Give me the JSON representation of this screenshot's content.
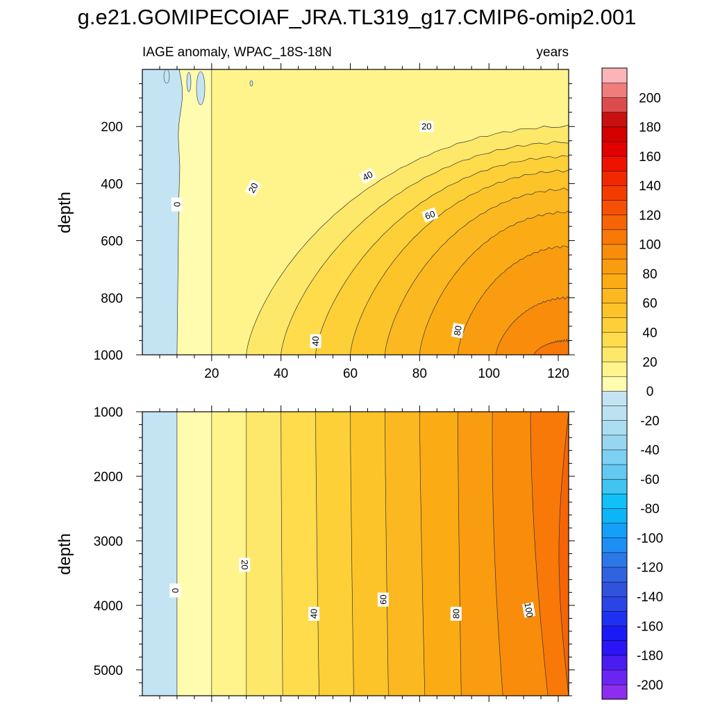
{
  "title": "g.e21.GOMIPECOIAF_JRA.TL319_g17.CMIP6-omip2.001",
  "chart_data": [
    {
      "panel": "upper",
      "type": "heatmap",
      "subtitle_left": "IAGE anomaly, WPAC_18S-18N",
      "subtitle_right": "years",
      "xlabel": "",
      "ylabel": "depth",
      "xlim": [
        0,
        123
      ],
      "ylim": [
        0,
        1000
      ],
      "y_reversed": true,
      "x_ticks": [
        "20",
        "40",
        "60",
        "80",
        "100",
        "120"
      ],
      "y_ticks": [
        "200",
        "400",
        "600",
        "800",
        "1000"
      ],
      "contour_interval": 10,
      "contour_labels": [
        "0",
        "20",
        "20",
        "40",
        "40",
        "60",
        "80"
      ],
      "isolines": [
        {
          "level": 0,
          "bottom_x": 10,
          "top_x": 11,
          "thermocline_depth": null
        },
        {
          "level": 10,
          "bottom_x": 20,
          "top_x": 20,
          "thermocline_depth": null
        },
        {
          "level": 20,
          "bottom_x": 30,
          "top_x": 123,
          "thermocline_depth": 200
        },
        {
          "level": 30,
          "bottom_x": 40,
          "top_x": 123,
          "thermocline_depth": 255
        },
        {
          "level": 40,
          "bottom_x": 50,
          "top_x": 123,
          "thermocline_depth": 305
        },
        {
          "level": 50,
          "bottom_x": 60,
          "top_x": 123,
          "thermocline_depth": 355
        },
        {
          "level": 60,
          "bottom_x": 70,
          "top_x": 123,
          "thermocline_depth": 420
        },
        {
          "level": 70,
          "bottom_x": 80,
          "top_x": 123,
          "thermocline_depth": 500
        },
        {
          "level": 80,
          "bottom_x": 91,
          "top_x": 123,
          "thermocline_depth": 620
        },
        {
          "level": 90,
          "bottom_x": 102,
          "top_x": 123,
          "thermocline_depth": 800
        },
        {
          "level": 100,
          "bottom_x": 113,
          "top_x": 123,
          "thermocline_depth": 950
        }
      ]
    },
    {
      "panel": "lower",
      "type": "heatmap",
      "xlabel": "",
      "ylabel": "depth",
      "xlim": [
        0,
        123
      ],
      "ylim": [
        1000,
        5400
      ],
      "y_reversed": true,
      "y_ticks": [
        "1000",
        "2000",
        "3000",
        "4000",
        "5000"
      ],
      "contour_interval": 10,
      "contour_labels": [
        "0",
        "20",
        "40",
        "60",
        "80",
        "100"
      ],
      "isolines": [
        {
          "level": 0,
          "top_x": 10,
          "bottom_x": 10
        },
        {
          "level": 10,
          "top_x": 20,
          "bottom_x": 20
        },
        {
          "level": 20,
          "top_x": 30,
          "bottom_x": 30
        },
        {
          "level": 30,
          "top_x": 40,
          "bottom_x": 40.5
        },
        {
          "level": 40,
          "top_x": 50,
          "bottom_x": 51
        },
        {
          "level": 50,
          "top_x": 60,
          "bottom_x": 61
        },
        {
          "level": 60,
          "top_x": 70,
          "bottom_x": 71
        },
        {
          "level": 70,
          "top_x": 80,
          "bottom_x": 81.5
        },
        {
          "level": 80,
          "top_x": 91,
          "bottom_x": 92
        },
        {
          "level": 90,
          "top_x": 101,
          "bottom_x": 104
        },
        {
          "level": 100,
          "top_x": 112,
          "bottom_x": 117
        },
        {
          "level": 110,
          "top_x": 123,
          "bottom_x": 123
        }
      ]
    }
  ],
  "colorbar": {
    "levels": [
      -210,
      -200,
      -190,
      -180,
      -170,
      -160,
      -150,
      -140,
      -130,
      -120,
      -110,
      -100,
      -90,
      -80,
      -70,
      -60,
      -50,
      -40,
      -30,
      -20,
      -10,
      0,
      10,
      20,
      30,
      40,
      50,
      60,
      70,
      80,
      90,
      100,
      110,
      120,
      130,
      140,
      150,
      160,
      170,
      180,
      190,
      200,
      210
    ],
    "labels": [
      "-200",
      "-180",
      "-160",
      "-140",
      "-120",
      "-100",
      "-80",
      "-60",
      "-40",
      "-20",
      "0",
      "20",
      "40",
      "60",
      "80",
      "100",
      "120",
      "140",
      "160",
      "180",
      "200"
    ],
    "colors": [
      "#8c2df0",
      "#6b25f0",
      "#4a1cf0",
      "#2b14f5",
      "#1a1af5",
      "#2030f0",
      "#2a44e6",
      "#3052dc",
      "#2f64e0",
      "#2c78e8",
      "#1e8ef5",
      "#14a0f8",
      "#0cb4f8",
      "#10c0f8",
      "#40c4f0",
      "#64c8f0",
      "#7cd0f2",
      "#98d6f0",
      "#acdef2",
      "#bce2f2",
      "#c4e4f4",
      "#fffcb0",
      "#fff48c",
      "#fee86a",
      "#fedc4c",
      "#fed038",
      "#fdc42a",
      "#fcb820",
      "#fbac14",
      "#fa9c10",
      "#f98c0a",
      "#f87808",
      "#f66406",
      "#f55004",
      "#f43c02",
      "#f22800",
      "#f01200",
      "#e20000",
      "#d40000",
      "#c81010",
      "#dc4c4c",
      "#f07c7c",
      "#fcb4b8"
    ]
  }
}
